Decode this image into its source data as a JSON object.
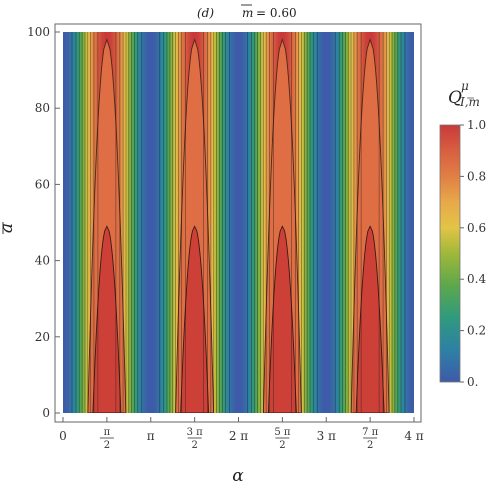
{
  "chart_data": {
    "type": "heatmap",
    "title": {
      "panel": "(d)",
      "symbol": "m",
      "equals": "= 0.60"
    },
    "xlabel": "α",
    "ylabel": "a",
    "xlim": [
      0,
      12.566
    ],
    "ylim": [
      0,
      100
    ],
    "x_ticks": [
      {
        "value": 0,
        "num": "0",
        "den": ""
      },
      {
        "value": 1.5708,
        "num": "π",
        "den": "2"
      },
      {
        "value": 3.1416,
        "num": "π",
        "den": ""
      },
      {
        "value": 4.7124,
        "num": "3 π",
        "den": "2"
      },
      {
        "value": 6.2832,
        "num": "2 π",
        "den": ""
      },
      {
        "value": 7.854,
        "num": "5 π",
        "den": "2"
      },
      {
        "value": 9.4248,
        "num": "3 π",
        "den": ""
      },
      {
        "value": 10.9956,
        "num": "7 π",
        "den": "2"
      },
      {
        "value": 12.5664,
        "num": "4 π",
        "den": ""
      }
    ],
    "y_ticks": [
      0,
      20,
      40,
      60,
      80,
      100
    ],
    "colorbar": {
      "label": "Q",
      "label_sub": "I,m",
      "label_sup": "μ",
      "range": [
        0,
        1
      ],
      "ticks": [
        "0.",
        "0.2",
        "0.4",
        "0.6",
        "0.8",
        "1.0"
      ],
      "stops": [
        {
          "v": 0.0,
          "color": "#3e5aa8"
        },
        {
          "v": 0.12,
          "color": "#2e7fa6"
        },
        {
          "v": 0.25,
          "color": "#2f9a7e"
        },
        {
          "v": 0.38,
          "color": "#5fa84a"
        },
        {
          "v": 0.5,
          "color": "#9fb83a"
        },
        {
          "v": 0.6,
          "color": "#e2c446"
        },
        {
          "v": 0.7,
          "color": "#e8a84a"
        },
        {
          "v": 0.8,
          "color": "#e07f44"
        },
        {
          "v": 0.9,
          "color": "#d85f40"
        },
        {
          "v": 1.0,
          "color": "#c8393a"
        }
      ]
    },
    "contour_levels": [
      0.1,
      0.2,
      0.3,
      0.4,
      0.5,
      0.6,
      0.7,
      0.8,
      0.9
    ],
    "red_regions": [
      {
        "center": 1.5708,
        "half_width_at_0": 0.5,
        "top": 49
      },
      {
        "center": 4.7124,
        "half_width_at_0": 0.5,
        "top": 49
      },
      {
        "center": 7.854,
        "half_width_at_0": 0.5,
        "top": 49
      },
      {
        "center": 10.9956,
        "half_width_at_0": 0.5,
        "top": 49
      }
    ],
    "orange_regions": [
      {
        "center": 1.5708,
        "half_width_at_0": 0.68,
        "top": 98
      },
      {
        "center": 4.7124,
        "half_width_at_0": 0.68,
        "top": 98
      },
      {
        "center": 7.854,
        "half_width_at_0": 0.68,
        "top": 98
      },
      {
        "center": 10.9956,
        "half_width_at_0": 0.68,
        "top": 98
      }
    ]
  }
}
